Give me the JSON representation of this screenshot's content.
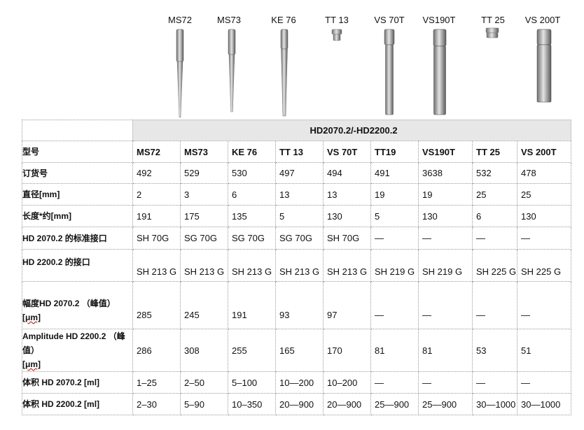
{
  "products": [
    {
      "label": "MS72"
    },
    {
      "label": "MS73"
    },
    {
      "label": "KE 76"
    },
    {
      "label": "TT 13"
    },
    {
      "label": "VS 70T"
    },
    {
      "label": "VS190T"
    },
    {
      "label": "TT 25"
    },
    {
      "label": "VS 200T"
    }
  ],
  "table": {
    "title": "HD2070.2/-HD2200.2",
    "rows": [
      {
        "head": "型号",
        "cells": [
          "MS72",
          "MS73",
          "KE 76",
          "TT 13",
          "VS 70T",
          "TT19",
          "VS190T",
          "TT 25",
          "VS 200T"
        ]
      },
      {
        "head": "订货号",
        "cells": [
          "492",
          "529",
          "530",
          "497",
          "494",
          "491",
          "3638",
          "532",
          "478"
        ]
      },
      {
        "head": "直径[mm]",
        "cells": [
          "2",
          "3",
          "6",
          "13",
          "13",
          "19",
          "19",
          "25",
          "25"
        ]
      },
      {
        "head": "长度*约[mm]",
        "cells": [
          "191",
          "175",
          "135",
          "5",
          "130",
          "5",
          "130",
          "6",
          "130"
        ]
      },
      {
        "head": "HD 2070.2 的标准接口",
        "cells": [
          "SH 70G",
          "SG 70G",
          "SG 70G",
          "SG 70G",
          "SH 70G",
          "—",
          "—",
          "—",
          "—"
        ]
      },
      {
        "head": "HD 2200.2 的接口",
        "cells": [
          "SH 213 G",
          "SH 213 G",
          "SH 213 G",
          "SH 213 G",
          "SH 213 G",
          "SH 219 G",
          "SH 219 G",
          "SH 225 G",
          "SH 225 G"
        ]
      },
      {
        "head": "幅度HD 2070.2 （峰值）",
        "head_unit": "[μm]",
        "cells": [
          "285",
          "245",
          "191",
          "93",
          "97",
          "—",
          "—",
          "—",
          "—"
        ]
      },
      {
        "head": "Amplitude HD 2200.2 （峰值）",
        "head_unit": "[μm]",
        "cells": [
          "286",
          "308",
          "255",
          "165",
          "170",
          "81",
          "81",
          "53",
          "51"
        ]
      },
      {
        "head": "体积 HD 2070.2 [ml]",
        "cells": [
          "1–25",
          "2–50",
          "5–100",
          "10—200",
          "10–200",
          "—",
          "—",
          "—",
          "—"
        ]
      },
      {
        "head": "体积 HD 2200.2 [ml]",
        "cells": [
          "2–30",
          "5–90",
          "10–350",
          "20—900",
          "20—900",
          "25—900",
          "25—900",
          "30—1000",
          "30—1000"
        ]
      }
    ]
  }
}
